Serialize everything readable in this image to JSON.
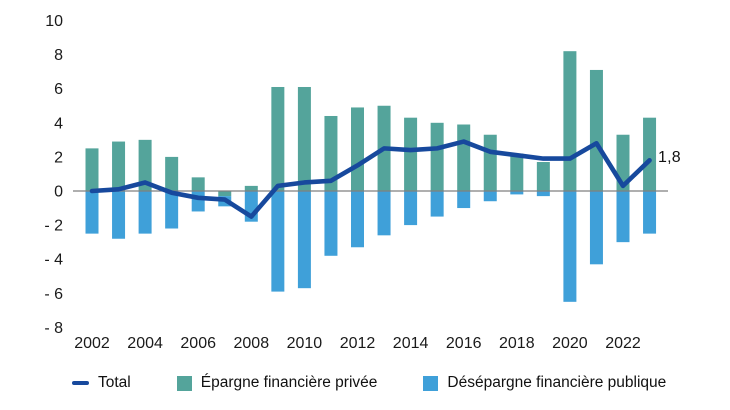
{
  "figure": {
    "annotation_last_value": "1,8"
  },
  "axes": {
    "y_ticks": [
      "10",
      "8",
      "6",
      "4",
      "2",
      "0",
      "- 2",
      "- 4",
      "- 6",
      "- 8"
    ],
    "x_ticks": [
      "2002",
      "2004",
      "2006",
      "2008",
      "2010",
      "2012",
      "2014",
      "2016",
      "2018",
      "2020",
      "2022"
    ]
  },
  "legend": {
    "items": [
      {
        "label": "Total",
        "swatch": "dash",
        "color": "#17499D"
      },
      {
        "label": "Épargne financière privée",
        "swatch": "square",
        "color": "#54A49B"
      },
      {
        "label": "Désépargne financière publique",
        "swatch": "square",
        "color": "#3FA0D9"
      }
    ]
  },
  "colors": {
    "private_saving_bar": "#54A49B",
    "public_dissaving_bar": "#3FA0D9",
    "total_line": "#17499D",
    "zero_line": "#7f7f7f",
    "axis_text": "#1a1a1a",
    "annotation_text": "#111111"
  },
  "chart_data": {
    "type": "bar+line",
    "title": "",
    "xlabel": "",
    "ylabel": "",
    "x": [
      2002,
      2003,
      2004,
      2005,
      2006,
      2007,
      2008,
      2009,
      2010,
      2011,
      2012,
      2013,
      2014,
      2015,
      2016,
      2017,
      2018,
      2019,
      2020,
      2021,
      2022,
      2023
    ],
    "series": [
      {
        "name": "Épargne financière privée",
        "type": "bar",
        "color": "#54A49B",
        "values": [
          2.5,
          2.9,
          3.0,
          2.0,
          0.8,
          -0.3,
          0.3,
          6.1,
          6.1,
          4.4,
          4.9,
          5.0,
          4.3,
          4.0,
          3.9,
          3.3,
          2.2,
          1.7,
          8.2,
          7.1,
          3.3,
          4.3
        ]
      },
      {
        "name": "Désépargne financière publique",
        "type": "bar",
        "color": "#3FA0D9",
        "values": [
          -2.5,
          -2.8,
          -2.5,
          -2.2,
          -1.2,
          -0.6,
          -1.8,
          -5.9,
          -5.7,
          -3.8,
          -3.3,
          -2.6,
          -2.0,
          -1.5,
          -1.0,
          -0.6,
          -0.2,
          -0.3,
          -6.5,
          -4.3,
          -3.0,
          -2.5
        ]
      },
      {
        "name": "Total",
        "type": "line",
        "color": "#17499D",
        "values": [
          0.0,
          0.1,
          0.5,
          -0.1,
          -0.4,
          -0.5,
          -1.5,
          0.3,
          0.5,
          0.6,
          1.5,
          2.5,
          2.4,
          2.5,
          2.9,
          2.3,
          2.1,
          1.9,
          1.9,
          2.8,
          0.3,
          1.8
        ]
      }
    ],
    "ylim": [
      -8,
      10
    ],
    "y_tick_step": 2,
    "x_tick_years": [
      2002,
      2004,
      2006,
      2008,
      2010,
      2012,
      2014,
      2016,
      2018,
      2020,
      2022
    ],
    "grid": false,
    "zero_line": true,
    "bar_mode": "stacked-by-sign",
    "legend_position": "bottom",
    "annotation": {
      "text": "1,8",
      "x": 2023,
      "y": 1.8
    }
  }
}
